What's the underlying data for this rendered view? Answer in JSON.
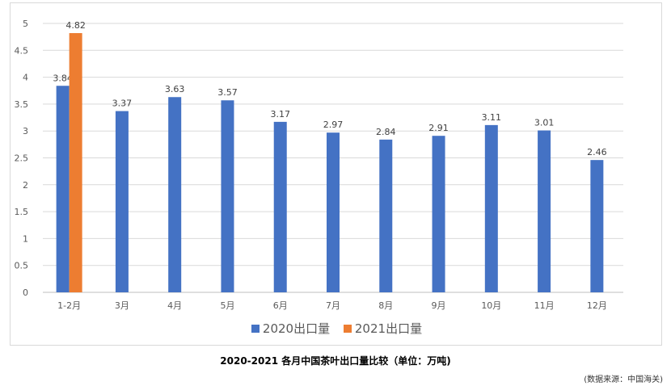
{
  "chart_data": {
    "type": "bar",
    "categories": [
      "1-2月",
      "3月",
      "4月",
      "5月",
      "6月",
      "7月",
      "8月",
      "9月",
      "10月",
      "11月",
      "12月"
    ],
    "series": [
      {
        "name": "2020出口量",
        "color": "#4472C4",
        "values": [
          3.84,
          3.37,
          3.63,
          3.57,
          3.17,
          2.97,
          2.84,
          2.91,
          3.11,
          3.01,
          2.46
        ],
        "labels": [
          "3.84",
          "3.37",
          "3.63",
          "3.57",
          "3.17",
          "2.97",
          "2.84",
          "2.91",
          "3.11",
          "3.01",
          "2.46"
        ]
      },
      {
        "name": "2021出口量",
        "color": "#ED7D31",
        "values": [
          4.82,
          null,
          null,
          null,
          null,
          null,
          null,
          null,
          null,
          null,
          null
        ],
        "labels": [
          "4.82",
          "",
          "",
          "",
          "",
          "",
          "",
          "",
          "",
          "",
          ""
        ]
      }
    ],
    "ylim": [
      0,
      5
    ],
    "yticks": [
      "0",
      "0.5",
      "1",
      "1.5",
      "2",
      "2.5",
      "3",
      "3.5",
      "4",
      "4.5",
      "5"
    ],
    "grid": true,
    "legend_position": "bottom"
  },
  "caption": "2020-2021 各月中国茶叶出口量比较（单位：万吨)",
  "source": "(数据来源：中国海关)"
}
